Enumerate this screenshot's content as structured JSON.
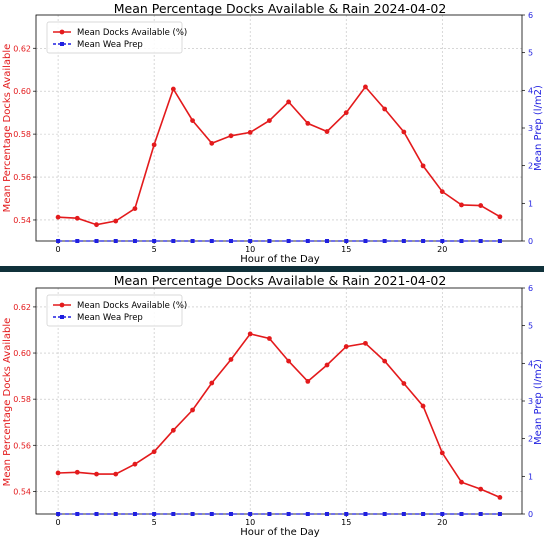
{
  "colors": {
    "docks": "#e31a1c",
    "rain": "#1f1fe0",
    "grid": "#bfbfbf",
    "separator": "#10313a"
  },
  "chart_data": [
    {
      "type": "line",
      "title": "Mean Percentage Docks Available & Rain 2024-04-02",
      "xlabel": "Hour of the Day",
      "ylabel": "Mean Percentage Docks Available",
      "ylabel_right": "Mean Prep (l/m2)",
      "grid": true,
      "legend_placement": "top-left",
      "x": [
        0,
        1,
        2,
        3,
        4,
        5,
        6,
        7,
        8,
        9,
        10,
        11,
        12,
        13,
        14,
        15,
        16,
        17,
        18,
        19,
        20,
        21,
        22,
        23
      ],
      "xlim": [
        -1.15,
        24.15
      ],
      "xticks": [
        0,
        5,
        10,
        15,
        20
      ],
      "ylim": [
        0.5302,
        0.6355
      ],
      "yticks": [
        0.54,
        0.56,
        0.58,
        0.6,
        0.62
      ],
      "ylim_right": [
        0,
        6
      ],
      "yticks_right": [
        0,
        1,
        2,
        3,
        4,
        5,
        6
      ],
      "series": [
        {
          "name": "Mean Docks Available (%)",
          "axis": "left",
          "marker": "circle",
          "values": [
            0.5413,
            0.5408,
            0.5378,
            0.5395,
            0.5453,
            0.575,
            0.601,
            0.5863,
            0.5757,
            0.5792,
            0.5808,
            0.5863,
            0.595,
            0.585,
            0.5812,
            0.59,
            0.602,
            0.5917,
            0.581,
            0.5652,
            0.5532,
            0.547,
            0.5467,
            0.5415
          ]
        },
        {
          "name": "Mean Wea Prep",
          "axis": "right",
          "marker": "square",
          "values": [
            0,
            0,
            0,
            0,
            0,
            0,
            0,
            0,
            0,
            0,
            0,
            0,
            0,
            0,
            0,
            0,
            0,
            0,
            0,
            0,
            0,
            0,
            0,
            0
          ]
        }
      ]
    },
    {
      "type": "line",
      "title": "Mean Percentage Docks Available & Rain 2021-04-02",
      "xlabel": "Hour of the Day",
      "ylabel": "Mean Percentage Docks Available",
      "ylabel_right": "Mean Prep (l/m2)",
      "grid": true,
      "legend_placement": "top-left",
      "x": [
        0,
        1,
        2,
        3,
        4,
        5,
        6,
        7,
        8,
        9,
        10,
        11,
        12,
        13,
        14,
        15,
        16,
        17,
        18,
        19,
        20,
        21,
        22,
        23
      ],
      "xlim": [
        -1.15,
        24.15
      ],
      "xticks": [
        0,
        5,
        10,
        15,
        20
      ],
      "ylim": [
        0.5302,
        0.6282
      ],
      "yticks": [
        0.54,
        0.56,
        0.58,
        0.6,
        0.62
      ],
      "ylim_right": [
        0,
        6
      ],
      "yticks_right": [
        0,
        1,
        2,
        3,
        4,
        5,
        6
      ],
      "series": [
        {
          "name": "Mean Docks Available (%)",
          "axis": "left",
          "marker": "circle",
          "values": [
            0.548,
            0.5483,
            0.5475,
            0.5475,
            0.5518,
            0.5572,
            0.5665,
            0.5753,
            0.587,
            0.5972,
            0.6083,
            0.6063,
            0.5965,
            0.5877,
            0.5948,
            0.6028,
            0.6042,
            0.5965,
            0.5868,
            0.577,
            0.5567,
            0.544,
            0.541,
            0.5374
          ]
        },
        {
          "name": "Mean Wea Prep",
          "axis": "right",
          "marker": "square",
          "values": [
            0,
            0,
            0,
            0,
            0,
            0,
            0,
            0,
            0,
            0,
            0,
            0,
            0,
            0,
            0,
            0,
            0,
            0,
            0,
            0,
            0,
            0,
            0,
            0
          ]
        }
      ]
    }
  ]
}
